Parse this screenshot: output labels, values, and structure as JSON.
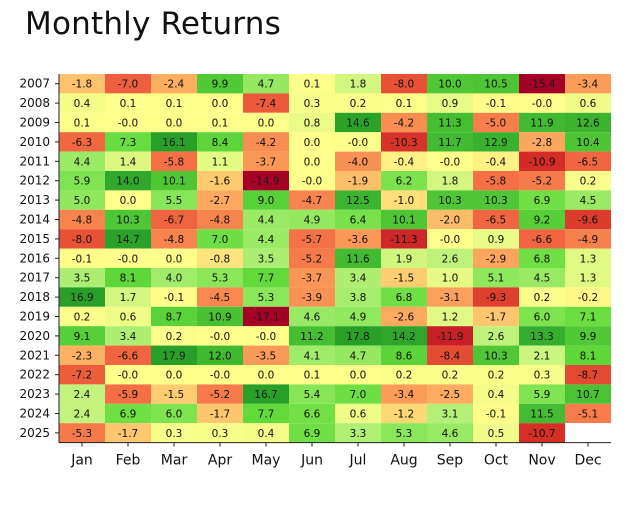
{
  "chart_data": {
    "type": "heatmap",
    "title": "Monthly Returns",
    "x": [
      "Jan",
      "Feb",
      "Mar",
      "Apr",
      "May",
      "Jun",
      "Jul",
      "Aug",
      "Sep",
      "Oct",
      "Nov",
      "Dec"
    ],
    "y": [
      "2007",
      "2008",
      "2009",
      "2010",
      "2011",
      "2012",
      "2013",
      "2014",
      "2015",
      "2016",
      "2017",
      "2018",
      "2019",
      "2020",
      "2021",
      "2022",
      "2023",
      "2024",
      "2025"
    ],
    "values": [
      [
        "-1.8",
        "-7.0",
        "-2.4",
        "9.9",
        "4.7",
        "0.1",
        "1.8",
        "-8.0",
        "10.0",
        "10.5",
        "-15.4",
        "-3.4"
      ],
      [
        "0.4",
        "0.1",
        "0.1",
        "0.0",
        "-7.4",
        "0.3",
        "0.2",
        "0.1",
        "0.9",
        "-0.1",
        "-0.0",
        "0.6"
      ],
      [
        "0.1",
        "-0.0",
        "0.0",
        "0.1",
        "0.0",
        "0.8",
        "14.6",
        "-4.2",
        "11.3",
        "-5.0",
        "11.9",
        "12.6"
      ],
      [
        "-6.3",
        "7.3",
        "16.1",
        "8.4",
        "-4.2",
        "0.0",
        "-0.0",
        "-10.3",
        "11.7",
        "12.9",
        "-2.8",
        "10.4"
      ],
      [
        "4.4",
        "1.4",
        "-5.8",
        "1.1",
        "-3.7",
        "0.0",
        "-4.0",
        "-0.4",
        "-0.0",
        "-0.4",
        "-10.9",
        "-6.5"
      ],
      [
        "5.9",
        "14.0",
        "10.1",
        "-1.6",
        "-14.9",
        "-0.0",
        "-1.9",
        "6.2",
        "1.8",
        "-5.8",
        "-5.2",
        "0.2"
      ],
      [
        "5.0",
        "0.0",
        "5.5",
        "-2.7",
        "9.0",
        "-4.7",
        "12.5",
        "-1.0",
        "10.3",
        "10.3",
        "6.9",
        "4.5"
      ],
      [
        "-4.8",
        "10.3",
        "-6.7",
        "-4.8",
        "4.4",
        "4.9",
        "6.4",
        "10.1",
        "-2.0",
        "-6.5",
        "9.2",
        "-9.6"
      ],
      [
        "-8.0",
        "14.7",
        "-4.8",
        "7.0",
        "4.4",
        "-5.7",
        "-3.6",
        "-11.3",
        "-0.0",
        "0.9",
        "-6.6",
        "-4.9"
      ],
      [
        "-0.1",
        "-0.0",
        "0.0",
        "-0.8",
        "3.5",
        "-5.2",
        "11.6",
        "1.9",
        "2.6",
        "-2.9",
        "6.8",
        "1.3"
      ],
      [
        "3.5",
        "8.1",
        "4.0",
        "5.3",
        "7.7",
        "-3.7",
        "3.4",
        "-1.5",
        "1.0",
        "5.1",
        "4.5",
        "1.3"
      ],
      [
        "16.9",
        "1.7",
        "-0.1",
        "-4.5",
        "5.3",
        "-3.9",
        "3.8",
        "6.8",
        "-3.1",
        "-9.3",
        "0.2",
        "-0.2"
      ],
      [
        "0.2",
        "0.6",
        "8.7",
        "10.9",
        "-17.1",
        "4.6",
        "4.9",
        "-2.6",
        "1.2",
        "-1.7",
        "6.0",
        "7.1"
      ],
      [
        "9.1",
        "3.4",
        "0.2",
        "-0.0",
        "-0.0",
        "11.2",
        "17.8",
        "14.2",
        "-11.9",
        "2.6",
        "13.3",
        "9.9"
      ],
      [
        "-2.3",
        "-6.6",
        "17.9",
        "12.0",
        "-3.5",
        "4.1",
        "4.7",
        "8.6",
        "-8.4",
        "10.3",
        "2.1",
        "8.1"
      ],
      [
        "-7.2",
        "-0.0",
        "0.0",
        "-0.0",
        "0.0",
        "0.1",
        "0.0",
        "0.2",
        "0.2",
        "0.2",
        "0.3",
        "-8.7"
      ],
      [
        "2.4",
        "-5.9",
        "-1.5",
        "-5.2",
        "16.7",
        "5.4",
        "7.0",
        "-3.4",
        "-2.5",
        "0.4",
        "5.9",
        "10.7"
      ],
      [
        "2.4",
        "6.9",
        "6.0",
        "-1.7",
        "7.7",
        "6.6",
        "0.6",
        "-1.2",
        "3.1",
        "-0.1",
        "11.5",
        "-5.1"
      ],
      [
        "-5.3",
        "-1.7",
        "0.3",
        "0.3",
        "0.4",
        "6.9",
        "3.3",
        "5.3",
        "4.6",
        "0.5",
        "-10.7",
        ""
      ]
    ],
    "colormap": "RdYlGn",
    "color_range": [
      -15,
      15
    ],
    "legend": "none",
    "grid": false
  }
}
